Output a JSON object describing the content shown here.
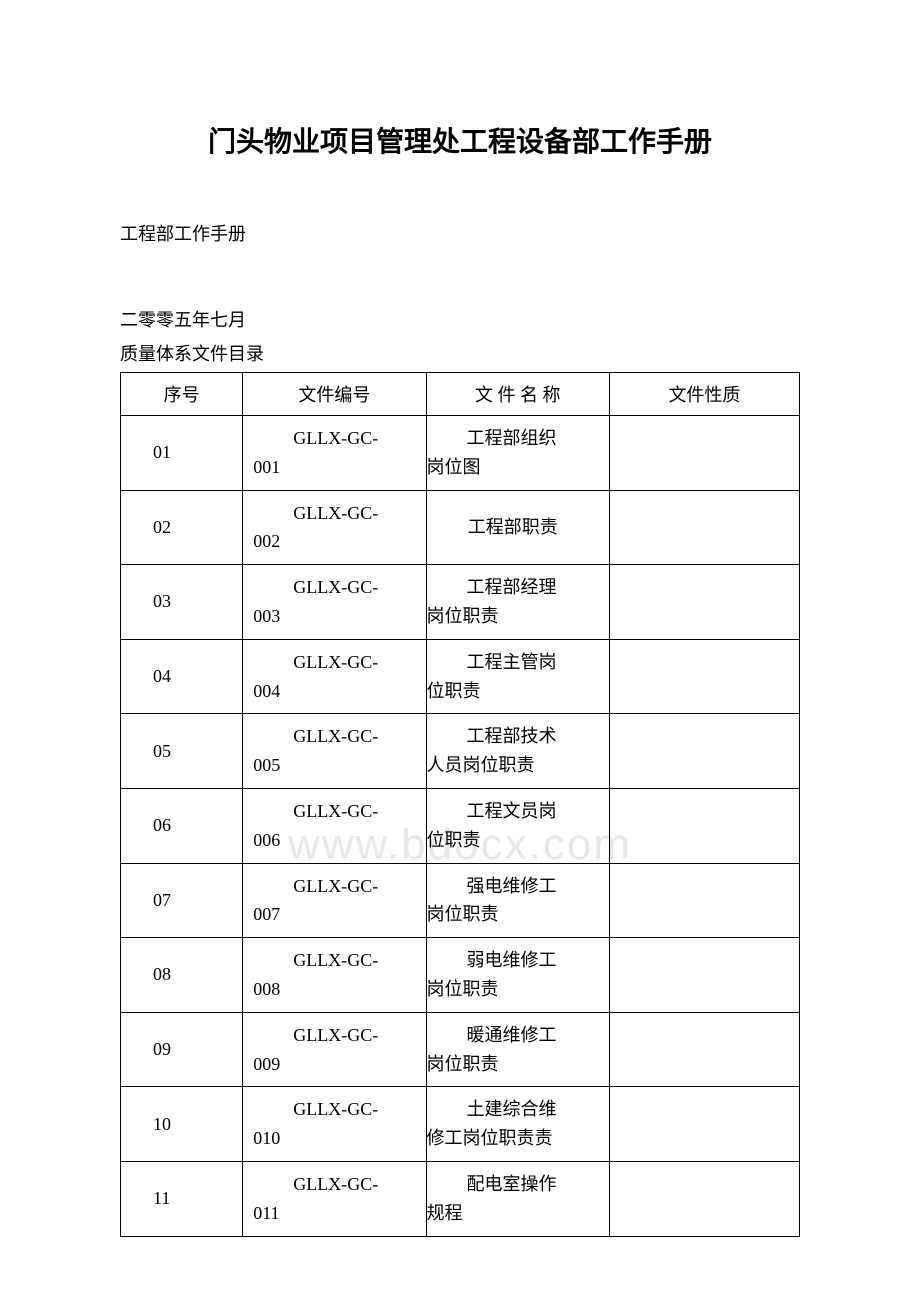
{
  "title": "门头物业项目管理处工程设备部工作手册",
  "subtitle1": "工程部工作手册",
  "subtitle2": "二零零五年七月",
  "subtitle3": "质量体系文件目录",
  "watermark": "www.bdocx.com",
  "table": {
    "columns": [
      "序号",
      "文件编号",
      "文 件 名 称",
      "文件性质"
    ],
    "rows": [
      {
        "seq": "01",
        "code_prefix": "GLLX-GC-",
        "code_suffix": "001",
        "name_l1": "工程部组织",
        "name_l2": "岗位图",
        "name_single": "",
        "type": ""
      },
      {
        "seq": "02",
        "code_prefix": "GLLX-GC-",
        "code_suffix": "002",
        "name_l1": "",
        "name_l2": "",
        "name_single": "工程部职责",
        "type": ""
      },
      {
        "seq": "03",
        "code_prefix": "GLLX-GC-",
        "code_suffix": "003",
        "name_l1": "工程部经理",
        "name_l2": "岗位职责",
        "name_single": "",
        "type": ""
      },
      {
        "seq": "04",
        "code_prefix": "GLLX-GC-",
        "code_suffix": "004",
        "name_l1": "工程主管岗",
        "name_l2": "位职责",
        "name_single": "",
        "type": ""
      },
      {
        "seq": "05",
        "code_prefix": "GLLX-GC-",
        "code_suffix": "005",
        "name_l1": "工程部技术",
        "name_l2": "人员岗位职责",
        "name_single": "",
        "type": ""
      },
      {
        "seq": "06",
        "code_prefix": "GLLX-GC-",
        "code_suffix": "006",
        "name_l1": "工程文员岗",
        "name_l2": "位职责",
        "name_single": "",
        "type": ""
      },
      {
        "seq": "07",
        "code_prefix": "GLLX-GC-",
        "code_suffix": "007",
        "name_l1": "强电维修工",
        "name_l2": "岗位职责",
        "name_single": "",
        "type": ""
      },
      {
        "seq": "08",
        "code_prefix": "GLLX-GC-",
        "code_suffix": "008",
        "name_l1": "弱电维修工",
        "name_l2": "岗位职责",
        "name_single": "",
        "type": ""
      },
      {
        "seq": "09",
        "code_prefix": "GLLX-GC-",
        "code_suffix": "009",
        "name_l1": "暖通维修工",
        "name_l2": "岗位职责",
        "name_single": "",
        "type": ""
      },
      {
        "seq": "10",
        "code_prefix": "GLLX-GC-",
        "code_suffix": "010",
        "name_l1": "土建综合维",
        "name_l2": "修工岗位职责责",
        "name_single": "",
        "type": ""
      },
      {
        "seq": "11",
        "code_prefix": "GLLX-GC-",
        "code_suffix": "011",
        "name_l1": "配电室操作",
        "name_l2": "规程",
        "name_single": "",
        "type": ""
      }
    ]
  }
}
